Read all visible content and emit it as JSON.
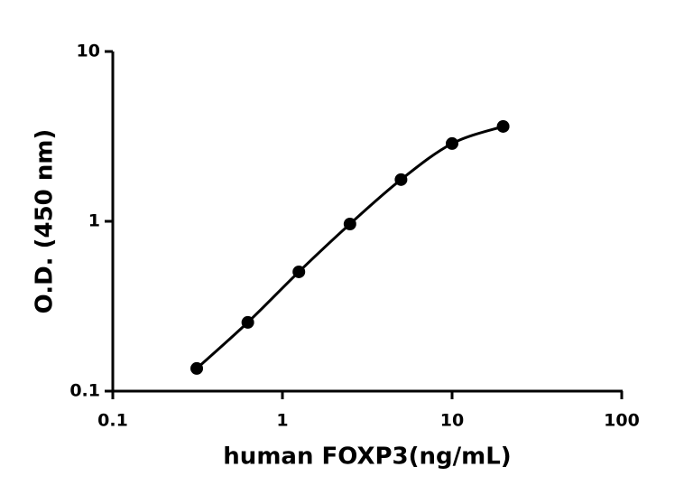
{
  "chart_data": {
    "type": "scatter",
    "x_label": "human FOXP3(ng/mL)",
    "y_label": "O.D. (450 nm)",
    "x": [
      0.3125,
      0.625,
      1.25,
      2.5,
      5,
      10,
      20
    ],
    "values": [
      0.136,
      0.254,
      0.504,
      0.964,
      1.76,
      2.87,
      3.62
    ],
    "color": "#000000",
    "fit_line": true,
    "log_x": true,
    "log_y": true,
    "xlim": [
      0.1,
      100
    ],
    "xticks": [
      0.1,
      1,
      10,
      100
    ],
    "ylim": [
      0.1,
      10
    ],
    "yticks": [
      0.1,
      1,
      10
    ]
  }
}
